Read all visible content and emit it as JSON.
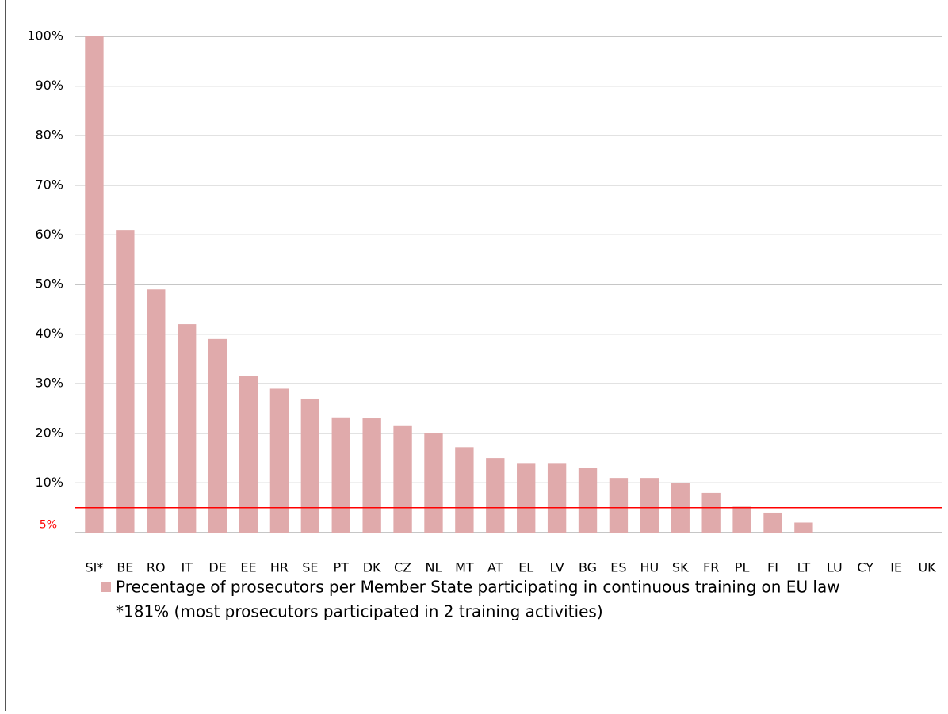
{
  "chart_data": {
    "type": "bar",
    "categories": [
      "SI*",
      "BE",
      "RO",
      "IT",
      "DE",
      "EE",
      "HR",
      "SE",
      "PT",
      "DK",
      "CZ",
      "NL",
      "MT",
      "AT",
      "EL",
      "LV",
      "BG",
      "ES",
      "HU",
      "SK",
      "FR",
      "PL",
      "FI",
      "LT",
      "LU",
      "CY",
      "IE",
      "UK"
    ],
    "series": [
      {
        "name": "Precentage of prosecutors per Member State participating in continuous training on EU law",
        "color": "#e0aaab",
        "values": [
          100,
          61,
          49,
          42,
          39,
          31.5,
          29,
          27,
          23.2,
          23,
          21.6,
          20,
          17.2,
          15,
          14,
          14,
          13,
          11,
          11,
          10,
          8,
          5.2,
          4,
          2,
          0,
          0,
          0,
          0
        ]
      }
    ],
    "note": "*181% (most prosecutors participated in 2 training activities)",
    "ylim": [
      0,
      100
    ],
    "yticks": [
      {
        "value": 10,
        "label": "10%"
      },
      {
        "value": 20,
        "label": "20%"
      },
      {
        "value": 30,
        "label": "30%"
      },
      {
        "value": 40,
        "label": "40%"
      },
      {
        "value": 50,
        "label": "50%"
      },
      {
        "value": 60,
        "label": "60%"
      },
      {
        "value": 70,
        "label": "70%"
      },
      {
        "value": 80,
        "label": "80%"
      },
      {
        "value": 90,
        "label": "90%"
      },
      {
        "value": 100,
        "label": "100%"
      }
    ],
    "grid": true,
    "reference_line": {
      "value": 5,
      "label": "5%",
      "color": "#ff0000"
    }
  }
}
